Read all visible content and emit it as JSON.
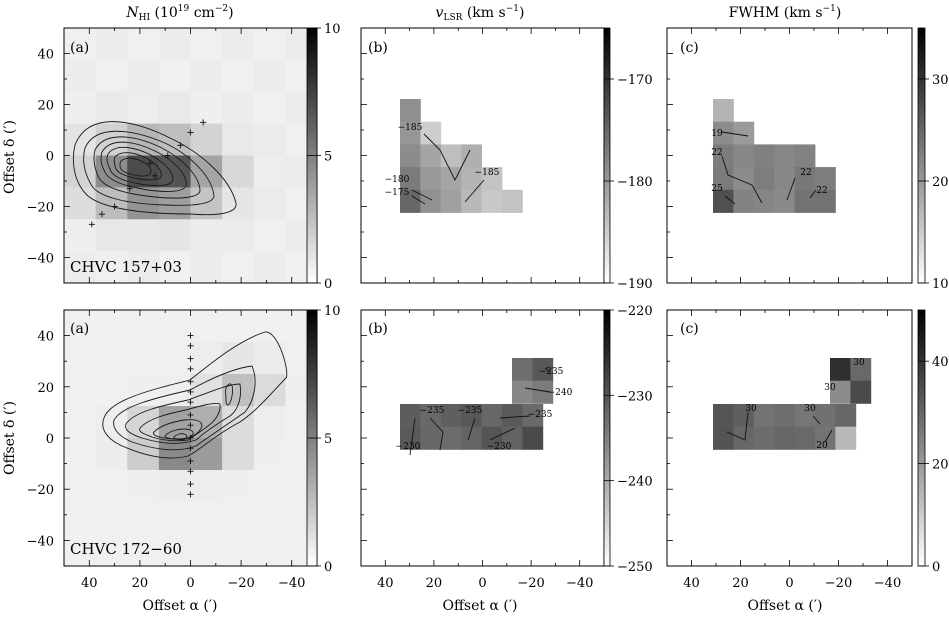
{
  "colors": {
    "axis": "#000000",
    "contour": "#1a1a1a",
    "background": "#ffffff"
  },
  "column_titles": [
    "N_HI (10^19 cm^-2)",
    "v_LSR (km s^-1)",
    "FWHM (km s^-1)"
  ],
  "title_parts": {
    "nhi": {
      "sym": "N",
      "sub": "HI",
      "unit": "(10",
      "sup": "19",
      "unit2": " cm",
      "sup2": "−2",
      "close": ")"
    },
    "vlsr": {
      "sym": "v",
      "sub": "LSR",
      "unit": " (km s",
      "sup": "−1",
      "close": ")"
    },
    "fwhm": {
      "sym": "FWHM (km s",
      "sup": "−1",
      "close": ")"
    }
  },
  "axis_labels": {
    "x": "Offset α (′)",
    "y": "Offset δ (′)"
  },
  "x_ticks": [
    "40",
    "20",
    "0",
    "−20",
    "−40"
  ],
  "y_ticks": [
    "40",
    "20",
    "0",
    "−20",
    "−40"
  ],
  "rows": [
    {
      "cloud_name": "CHVC 157+03",
      "panel_labels": [
        "(a)",
        "(b)",
        "(c)"
      ],
      "colorbars": [
        {
          "range": [
            0,
            10
          ],
          "ticks": [
            "10",
            "5",
            "0"
          ]
        },
        {
          "range": [
            -190,
            -165
          ],
          "ticks": [
            "−170",
            "−180",
            "−190"
          ]
        },
        {
          "range": [
            10,
            35
          ],
          "ticks": [
            "30",
            "20",
            "10"
          ]
        }
      ],
      "contour_labels_b": [
        "−185",
        "−185",
        "−180",
        "−175"
      ],
      "contour_labels_c": [
        "19",
        "22",
        "22",
        "25",
        "22"
      ]
    },
    {
      "cloud_name": "CHVC 172−60",
      "panel_labels": [
        "(a)",
        "(b)",
        "(c)"
      ],
      "colorbars": [
        {
          "range": [
            0,
            10
          ],
          "ticks": [
            "10",
            "5",
            "0"
          ]
        },
        {
          "range": [
            -250,
            -220
          ],
          "ticks": [
            "−220",
            "−230",
            "−240",
            "−250"
          ]
        },
        {
          "range": [
            0,
            50
          ],
          "ticks": [
            "40",
            "20",
            "0"
          ]
        }
      ],
      "contour_labels_b": [
        "−235",
        "−240",
        "−235",
        "−235",
        "−235",
        "−230",
        "−230"
      ],
      "contour_labels_c": [
        "30",
        "30",
        "30",
        "30",
        "20"
      ]
    }
  ],
  "chart_data": [
    {
      "type": "heatmap",
      "panel": "CHVC 157+03 (a)",
      "quantity": "N_HI (10^19 cm^-2)",
      "xlim": [
        50,
        -50
      ],
      "ylim": [
        -50,
        50
      ],
      "color_range": [
        0,
        10
      ],
      "contours": true,
      "peak_offset": [
        14,
        -8
      ],
      "pointings": [
        [
          14,
          -8
        ],
        [
          24,
          -13
        ],
        [
          30,
          -20
        ],
        [
          35,
          -23
        ],
        [
          39,
          -27
        ],
        [
          9,
          0
        ],
        [
          16,
          -3
        ],
        [
          4,
          4
        ],
        [
          0,
          9
        ],
        [
          -5,
          13
        ]
      ]
    },
    {
      "type": "heatmap",
      "panel": "CHVC 157+03 (b)",
      "quantity": "v_LSR (km s^-1)",
      "color_range": [
        -190,
        -165
      ],
      "contour_values": [
        -185,
        -185,
        -180,
        -175
      ]
    },
    {
      "type": "heatmap",
      "panel": "CHVC 157+03 (c)",
      "quantity": "FWHM (km s^-1)",
      "color_range": [
        10,
        35
      ],
      "contour_values": [
        19,
        22,
        22,
        25,
        22
      ]
    },
    {
      "type": "heatmap",
      "panel": "CHVC 172−60 (a)",
      "quantity": "N_HI (10^19 cm^-2)",
      "xlim": [
        50,
        -50
      ],
      "ylim": [
        -50,
        50
      ],
      "color_range": [
        0,
        10
      ],
      "contours": true,
      "peak_offset": [
        0,
        0
      ],
      "pointings": [
        [
          0,
          40
        ],
        [
          0,
          36
        ],
        [
          0,
          31
        ],
        [
          0,
          27
        ],
        [
          0,
          22
        ],
        [
          0,
          18
        ],
        [
          0,
          14
        ],
        [
          0,
          9
        ],
        [
          0,
          5
        ],
        [
          0,
          0
        ],
        [
          0,
          -4
        ],
        [
          0,
          -9
        ],
        [
          0,
          -13
        ],
        [
          0,
          -18
        ],
        [
          0,
          -22
        ]
      ]
    },
    {
      "type": "heatmap",
      "panel": "CHVC 172−60 (b)",
      "quantity": "v_LSR (km s^-1)",
      "color_range": [
        -250,
        -220
      ],
      "contour_values": [
        -235,
        -240,
        -235,
        -235,
        -235,
        -230,
        -230
      ]
    },
    {
      "type": "heatmap",
      "panel": "CHVC 172−60 (c)",
      "quantity": "FWHM (km s^-1)",
      "color_range": [
        0,
        50
      ],
      "contour_values": [
        30,
        30,
        30,
        30,
        20
      ]
    }
  ]
}
